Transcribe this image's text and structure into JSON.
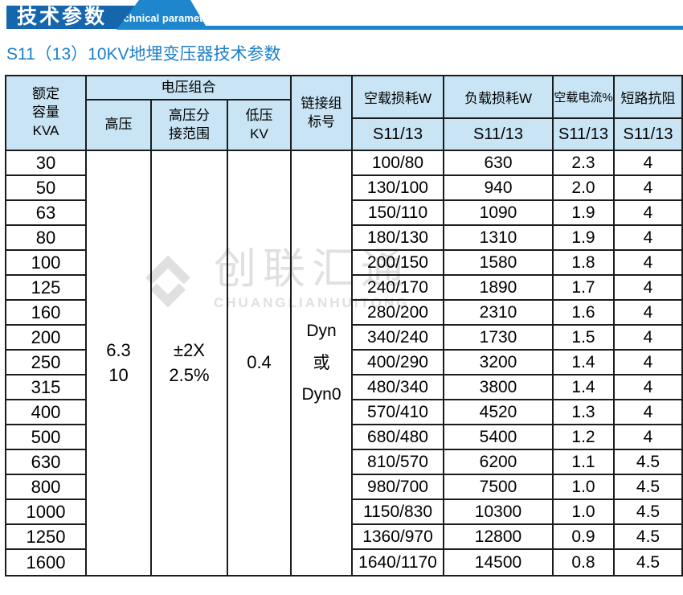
{
  "banner": {
    "title_cn": "技术参数",
    "title_en": "Technical parameter"
  },
  "page_title": "S11（13）10KV地埋变压器技术参数",
  "watermark": {
    "brand_cn": "创联汇通",
    "brand_en": "CHUANGLIANHUITONG"
  },
  "colors": {
    "banner_dark_blue": "#1566ac",
    "banner_light_blue": "#1e86cd",
    "title_blue": "#1c80c9",
    "header_cell_bg": "#c8e4f5",
    "border": "#1c1c1c",
    "watermark_gray": "#e0e0e0"
  },
  "table": {
    "headers": {
      "capacity": "额定\n容量\nKVA",
      "voltage_group": "电压组合",
      "hv": "高压",
      "tap_range": "高压分\n接范围",
      "lv": "低压\nKV",
      "link_group": "链接组\n标号",
      "no_load_loss": "空载损耗W",
      "load_loss": "负载损耗W",
      "no_load_current": "空载电流%",
      "short_circuit": "短路抗阻",
      "sub": "S11/13"
    },
    "merged": {
      "hv_value": "6.3\n10",
      "tap_value": "±2X\n2.5%",
      "lv_value": "0.4",
      "link_value": "Dyn\n或\nDyn0"
    },
    "rows": [
      {
        "kva": "30",
        "no_load": "100/80",
        "load": "630",
        "current": "2.3",
        "impedance": "4"
      },
      {
        "kva": "50",
        "no_load": "130/100",
        "load": "940",
        "current": "2.0",
        "impedance": "4"
      },
      {
        "kva": "63",
        "no_load": "150/110",
        "load": "1090",
        "current": "1.9",
        "impedance": "4"
      },
      {
        "kva": "80",
        "no_load": "180/130",
        "load": "1310",
        "current": "1.9",
        "impedance": "4"
      },
      {
        "kva": "100",
        "no_load": "200/150",
        "load": "1580",
        "current": "1.8",
        "impedance": "4"
      },
      {
        "kva": "125",
        "no_load": "240/170",
        "load": "1890",
        "current": "1.7",
        "impedance": "4"
      },
      {
        "kva": "160",
        "no_load": "280/200",
        "load": "2310",
        "current": "1.6",
        "impedance": "4"
      },
      {
        "kva": "200",
        "no_load": "340/240",
        "load": "1730",
        "current": "1.5",
        "impedance": "4"
      },
      {
        "kva": "250",
        "no_load": "400/290",
        "load": "3200",
        "current": "1.4",
        "impedance": "4"
      },
      {
        "kva": "315",
        "no_load": "480/340",
        "load": "3800",
        "current": "1.4",
        "impedance": "4"
      },
      {
        "kva": "400",
        "no_load": "570/410",
        "load": "4520",
        "current": "1.3",
        "impedance": "4"
      },
      {
        "kva": "500",
        "no_load": "680/480",
        "load": "5400",
        "current": "1.2",
        "impedance": "4"
      },
      {
        "kva": "630",
        "no_load": "810/570",
        "load": "6200",
        "current": "1.1",
        "impedance": "4.5"
      },
      {
        "kva": "800",
        "no_load": "980/700",
        "load": "7500",
        "current": "1.0",
        "impedance": "4.5"
      },
      {
        "kva": "1000",
        "no_load": "1150/830",
        "load": "10300",
        "current": "1.0",
        "impedance": "4.5"
      },
      {
        "kva": "1250",
        "no_load": "1360/970",
        "load": "12800",
        "current": "0.9",
        "impedance": "4.5"
      },
      {
        "kva": "1600",
        "no_load": "1640/1170",
        "load": "14500",
        "current": "0.8",
        "impedance": "4.5"
      }
    ]
  }
}
